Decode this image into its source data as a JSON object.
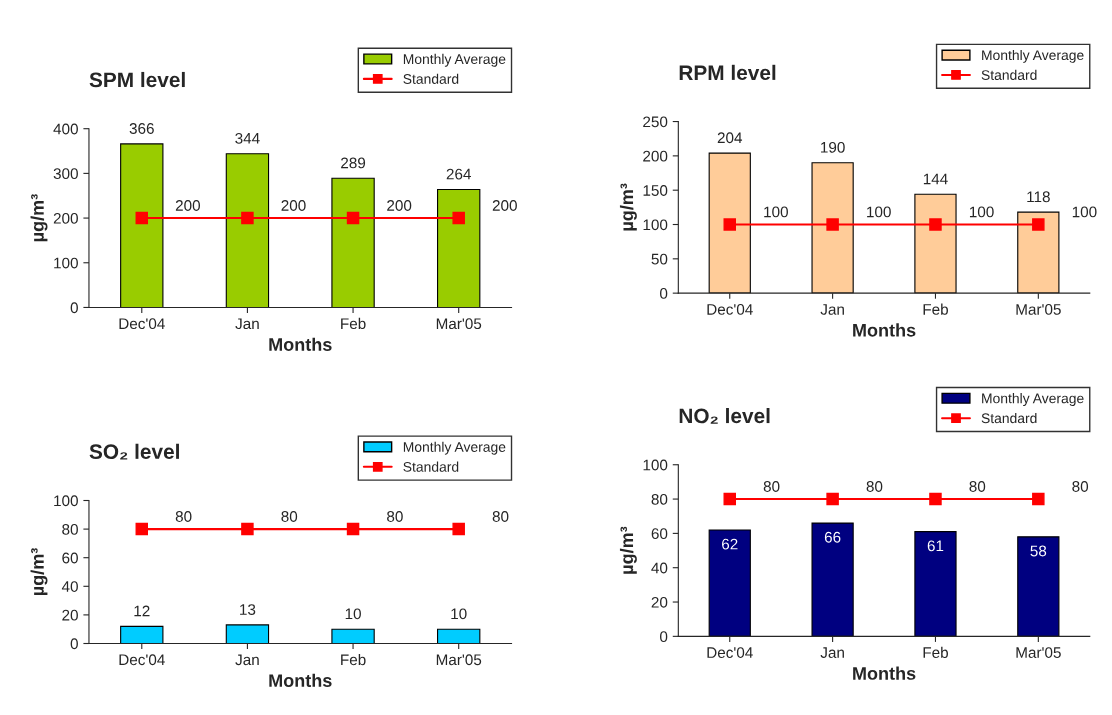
{
  "chart_data": [
    {
      "type": "bar",
      "title": "SPM level",
      "xlabel": "Months",
      "ylabel": "µg/m³",
      "categories": [
        "Dec'04",
        "Jan",
        "Feb",
        "Mar'05"
      ],
      "ylim": [
        0,
        400
      ],
      "yticks": [
        0,
        100,
        200,
        300,
        400
      ],
      "legend": "top right",
      "grid": false,
      "data_labels": true,
      "series": [
        {
          "name": "Monthly Average",
          "color": "#99cc00",
          "values": [
            366,
            344,
            289,
            264
          ]
        },
        {
          "name": "Standard",
          "type": "line",
          "color": "#ff0000",
          "marker": "square",
          "values": [
            200,
            200,
            200,
            200
          ]
        }
      ]
    },
    {
      "type": "bar",
      "title": "RPM level",
      "xlabel": "Months",
      "ylabel": "µg/m³",
      "categories": [
        "Dec'04",
        "Jan",
        "Feb",
        "Mar'05"
      ],
      "ylim": [
        0,
        250
      ],
      "yticks": [
        0,
        50,
        100,
        150,
        200,
        250
      ],
      "legend": "top right",
      "grid": false,
      "data_labels": true,
      "series": [
        {
          "name": "Monthly Average",
          "color": "#ffcc99",
          "values": [
            204,
            190,
            144,
            118
          ]
        },
        {
          "name": "Standard",
          "type": "line",
          "color": "#ff0000",
          "marker": "square",
          "values": [
            100,
            100,
            100,
            100
          ]
        }
      ]
    },
    {
      "type": "bar",
      "title": "SO₂ level",
      "xlabel": "Months",
      "ylabel": "µg/m³",
      "categories": [
        "Dec'04",
        "Jan",
        "Feb",
        "Mar'05"
      ],
      "ylim": [
        0,
        100
      ],
      "yticks": [
        0,
        20,
        40,
        60,
        80,
        100
      ],
      "legend": "top right",
      "grid": false,
      "data_labels": true,
      "series": [
        {
          "name": "Monthly Average",
          "color": "#00ccff",
          "values": [
            12,
            13,
            10,
            10
          ]
        },
        {
          "name": "Standard",
          "type": "line",
          "color": "#ff0000",
          "marker": "square",
          "values": [
            80,
            80,
            80,
            80
          ]
        }
      ]
    },
    {
      "type": "bar",
      "title": "NO₂ level",
      "xlabel": "Months",
      "ylabel": "µg/m³",
      "categories": [
        "Dec'04",
        "Jan",
        "Feb",
        "Mar'05"
      ],
      "ylim": [
        0,
        100
      ],
      "yticks": [
        0,
        20,
        40,
        60,
        80,
        100
      ],
      "legend": "top right",
      "grid": false,
      "data_labels": true,
      "series": [
        {
          "name": "Monthly Average",
          "color": "#000080",
          "values": [
            62,
            66,
            61,
            58
          ]
        },
        {
          "name": "Standard",
          "type": "line",
          "color": "#ff0000",
          "marker": "square",
          "values": [
            80,
            80,
            80,
            80
          ]
        }
      ]
    }
  ]
}
